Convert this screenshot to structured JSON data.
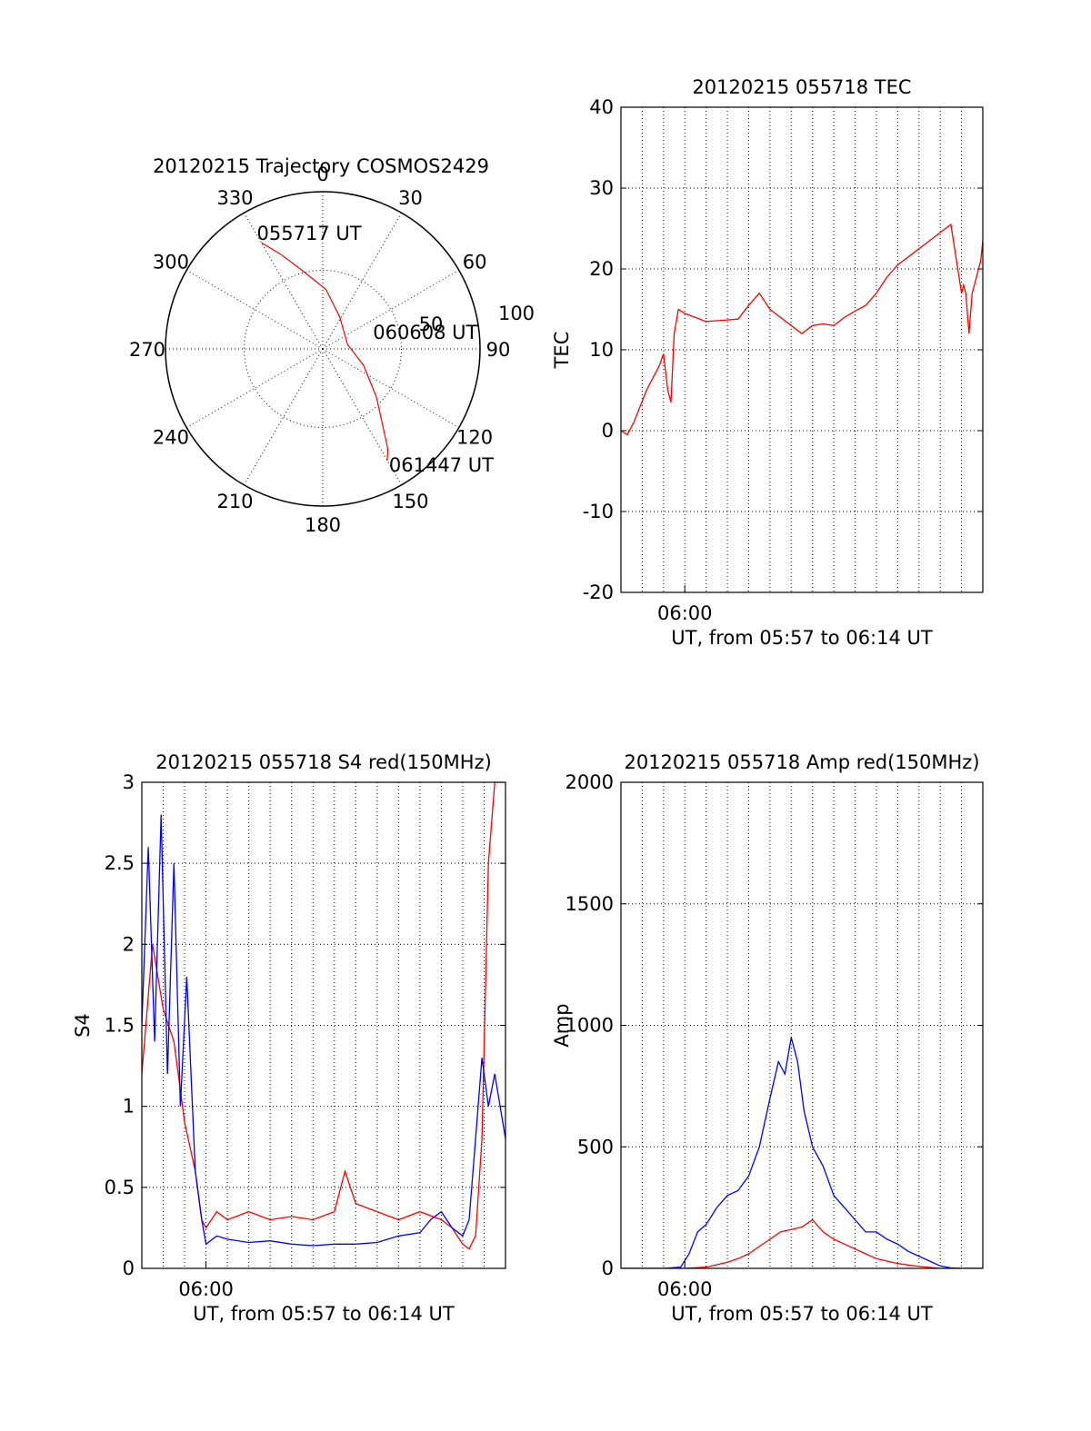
{
  "colors": {
    "red": "#ff0000",
    "blue": "#0000ff",
    "axis": "#000000",
    "background": "#ffffff"
  },
  "chart_data": [
    {
      "type": "polar",
      "title": "20120215 Trajectory COSMOS2429",
      "angle_labels": [
        "0",
        "30",
        "60",
        "90",
        "120",
        "150",
        "180",
        "210",
        "240",
        "270",
        "300",
        "330"
      ],
      "radial_labels": [
        "50",
        "100"
      ],
      "rlim": [
        0,
        100
      ],
      "grid": true,
      "series": [
        {
          "color": "red",
          "points": [
            [
              330,
              78
            ],
            [
              336,
              66
            ],
            [
              345,
              52
            ],
            [
              3,
              38
            ],
            [
              28,
              23
            ],
            [
              80,
              16
            ],
            [
              112,
              28
            ],
            [
              132,
              46
            ],
            [
              142,
              62
            ],
            [
              147,
              76
            ],
            [
              150,
              82
            ]
          ]
        }
      ],
      "annotations": [
        {
          "text": "055717 UT",
          "az": 330,
          "r": 78
        },
        {
          "text": "060608 UT",
          "az": 80,
          "r": 16
        },
        {
          "text": "061447 UT",
          "az": 150,
          "r": 82
        }
      ]
    },
    {
      "type": "line",
      "title": "20120215 055718 TEC",
      "ylabel": "TEC",
      "xlabel": "UT, from 05:57 to 06:14 UT",
      "x_tick_label": "06:00",
      "xlim_min": [
        0,
        17
      ],
      "ylim": [
        -20,
        40
      ],
      "y_ticks": [
        "-20",
        "-10",
        "0",
        "10",
        "20",
        "30",
        "40"
      ],
      "grid": true,
      "series": [
        {
          "color": "red",
          "x": [
            0.0,
            0.3,
            0.6,
            0.9,
            1.2,
            1.5,
            1.8,
            2.0,
            2.2,
            2.35,
            2.5,
            2.7,
            3.0,
            3.5,
            4.0,
            4.5,
            5.0,
            5.5,
            6.0,
            6.5,
            7.0,
            7.5,
            8.0,
            8.5,
            9.0,
            9.5,
            10.0,
            10.5,
            11.0,
            11.5,
            12.0,
            12.5,
            13.0,
            13.5,
            14.0,
            14.5,
            15.0,
            15.5,
            16.0,
            16.1,
            16.2,
            16.35,
            16.5,
            16.7,
            16.9,
            17.0
          ],
          "values": [
            0,
            -0.5,
            1,
            3,
            5,
            6.5,
            8,
            9.5,
            5,
            3.5,
            12,
            15,
            14.5,
            14,
            13.5,
            13.6,
            13.7,
            13.8,
            15.5,
            17,
            15,
            14,
            13,
            12,
            13,
            13.2,
            13,
            14,
            14.8,
            15.5,
            17,
            19,
            20.5,
            21.5,
            22.5,
            23.5,
            24.5,
            25.5,
            17,
            18,
            17,
            12,
            17,
            19,
            21,
            23.5
          ]
        }
      ]
    },
    {
      "type": "line",
      "title": "20120215 055718 S4 red(150MHz)",
      "ylabel": "S4",
      "xlabel": "UT, from 05:57 to 06:14 UT",
      "x_tick_label": "06:00",
      "xlim_min": [
        0,
        17
      ],
      "ylim": [
        0,
        3
      ],
      "y_ticks": [
        "0",
        "0.5",
        "1",
        "1.5",
        "2",
        "2.5",
        "3"
      ],
      "grid": true,
      "series": [
        {
          "color": "red",
          "x": [
            0.0,
            0.5,
            1.0,
            1.5,
            2.0,
            2.5,
            2.8,
            3.0,
            3.5,
            4.0,
            5.0,
            6.0,
            7.0,
            8.0,
            9.0,
            9.5,
            10.0,
            11.0,
            12.0,
            13.0,
            14.0,
            14.5,
            15.0,
            15.3,
            15.6,
            15.9,
            16.2,
            16.5,
            17.0
          ],
          "values": [
            1.2,
            2.0,
            1.6,
            1.4,
            0.9,
            0.6,
            0.3,
            0.25,
            0.35,
            0.3,
            0.35,
            0.3,
            0.32,
            0.3,
            0.35,
            0.6,
            0.4,
            0.35,
            0.3,
            0.35,
            0.3,
            0.25,
            0.15,
            0.12,
            0.2,
            0.8,
            2.5,
            3.0,
            3.0
          ]
        },
        {
          "color": "blue",
          "x": [
            0.0,
            0.3,
            0.6,
            0.9,
            1.2,
            1.5,
            1.8,
            2.1,
            2.5,
            2.8,
            3.0,
            3.5,
            4.0,
            5.0,
            6.0,
            7.0,
            8.0,
            9.0,
            10.0,
            11.0,
            12.0,
            13.0,
            13.5,
            14.0,
            14.5,
            15.0,
            15.3,
            15.6,
            15.9,
            16.2,
            16.5,
            17.0
          ],
          "values": [
            1.5,
            2.6,
            1.4,
            2.8,
            1.2,
            2.5,
            1.0,
            1.8,
            0.6,
            0.3,
            0.15,
            0.2,
            0.18,
            0.16,
            0.17,
            0.15,
            0.14,
            0.15,
            0.15,
            0.16,
            0.2,
            0.22,
            0.3,
            0.35,
            0.25,
            0.2,
            0.3,
            0.8,
            1.3,
            1.0,
            1.2,
            0.8
          ]
        }
      ]
    },
    {
      "type": "line",
      "title": "20120215 055718 Amp red(150MHz)",
      "ylabel": "Amp",
      "xlabel": "UT, from 05:57 to 06:14 UT",
      "x_tick_label": "06:00",
      "xlim_min": [
        0,
        17
      ],
      "ylim": [
        0,
        2000
      ],
      "y_ticks": [
        "0",
        "500",
        "1000",
        "1500",
        "2000"
      ],
      "grid": true,
      "series": [
        {
          "color": "blue",
          "x": [
            0.0,
            1.0,
            2.0,
            2.8,
            3.2,
            3.6,
            4.0,
            4.5,
            5.0,
            5.5,
            6.0,
            6.5,
            7.0,
            7.4,
            7.7,
            8.0,
            8.3,
            8.6,
            9.0,
            9.5,
            10.0,
            10.5,
            11.0,
            11.5,
            12.0,
            12.5,
            13.0,
            13.5,
            14.0,
            14.5,
            15.0,
            15.5,
            16.0,
            17.0
          ],
          "values": [
            0,
            0,
            0,
            5,
            60,
            150,
            180,
            250,
            300,
            320,
            380,
            500,
            700,
            850,
            800,
            950,
            850,
            650,
            500,
            420,
            300,
            250,
            200,
            150,
            150,
            120,
            100,
            70,
            50,
            30,
            10,
            2,
            0,
            0
          ]
        },
        {
          "color": "red",
          "x": [
            0.0,
            2.0,
            3.0,
            4.0,
            4.5,
            5.0,
            5.5,
            6.0,
            6.5,
            7.0,
            7.5,
            8.0,
            8.5,
            9.0,
            9.5,
            10.0,
            10.5,
            11.0,
            11.5,
            12.0,
            12.5,
            13.0,
            14.0,
            15.0,
            17.0
          ],
          "values": [
            0,
            0,
            0,
            5,
            15,
            25,
            40,
            60,
            90,
            120,
            150,
            160,
            170,
            200,
            150,
            120,
            100,
            80,
            60,
            40,
            30,
            20,
            8,
            0,
            0
          ]
        }
      ]
    }
  ]
}
